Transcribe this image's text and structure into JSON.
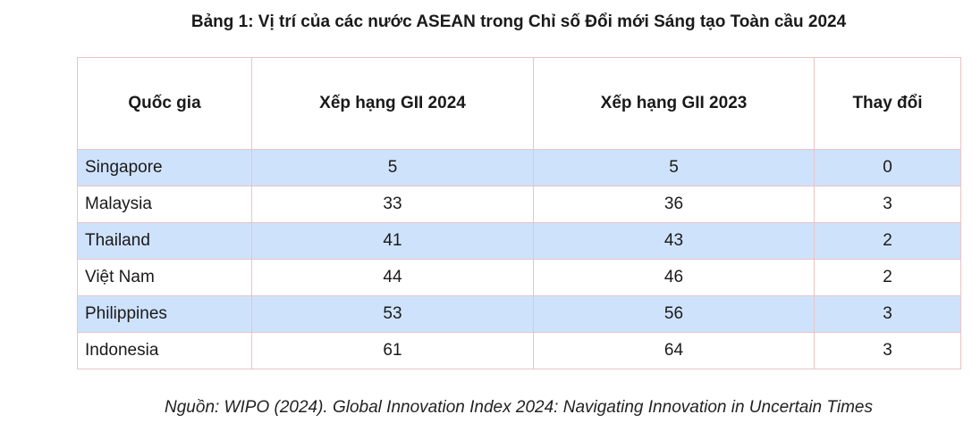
{
  "title": "Bảng 1: Vị trí của các nước ASEAN trong Chỉ số Đổi mới Sáng tạo Toàn cầu 2024",
  "table": {
    "headers": [
      "Quốc gia",
      "Xếp hạng GII 2024",
      "Xếp hạng GII 2023",
      "Thay đổi"
    ],
    "rows": [
      {
        "country": "Singapore",
        "rank2024": "5",
        "rank2023": "5",
        "change": "0"
      },
      {
        "country": "Malaysia",
        "rank2024": "33",
        "rank2023": "36",
        "change": "3"
      },
      {
        "country": "Thailand",
        "rank2024": "41",
        "rank2023": "43",
        "change": "2"
      },
      {
        "country": "Việt Nam",
        "rank2024": "44",
        "rank2023": "46",
        "change": "2"
      },
      {
        "country": "Philippines",
        "rank2024": "53",
        "rank2023": "56",
        "change": "3"
      },
      {
        "country": "Indonesia",
        "rank2024": "61",
        "rank2023": "64",
        "change": "3"
      }
    ]
  },
  "source": "Nguồn: WIPO (2024). Global Innovation Index 2024: Navigating Innovation in Uncertain Times",
  "colors": {
    "stripe": "#cfe2fc",
    "border": "#e8c4c4"
  }
}
